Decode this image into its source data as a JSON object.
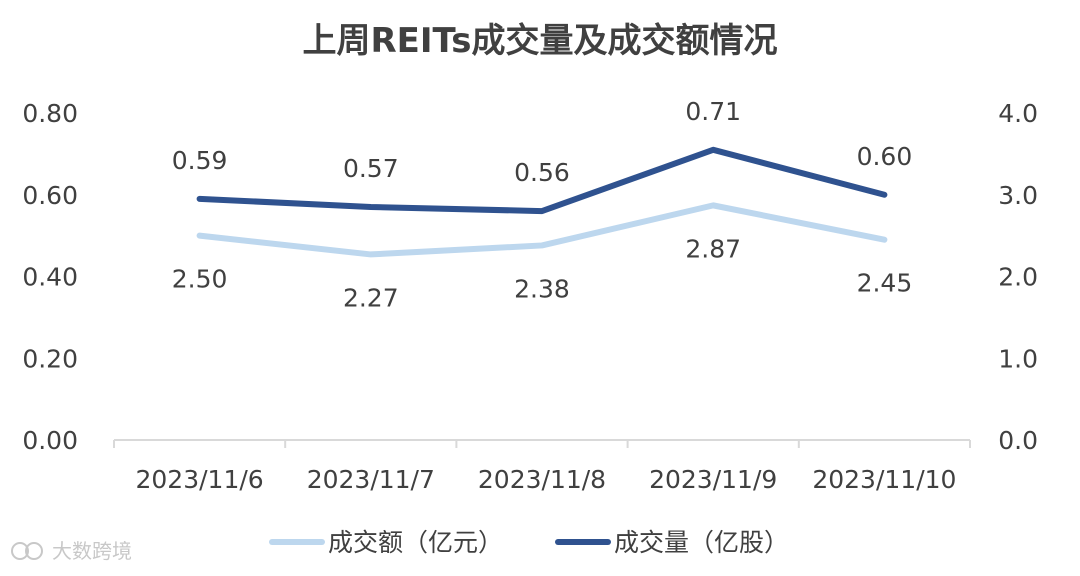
{
  "chart_data": {
    "type": "line",
    "title": "上周REITs成交量及成交额情况",
    "categories": [
      "2023/11/6",
      "2023/11/7",
      "2023/11/8",
      "2023/11/9",
      "2023/11/10"
    ],
    "series": [
      {
        "name": "成交额（亿元）",
        "axis": "right",
        "values": [
          2.5,
          2.27,
          2.38,
          2.87,
          2.45
        ],
        "labels": [
          "2.50",
          "2.27",
          "2.38",
          "2.87",
          "2.45"
        ],
        "color": "#bdd7ee"
      },
      {
        "name": "成交量（亿股）",
        "axis": "left",
        "values": [
          0.59,
          0.57,
          0.56,
          0.71,
          0.6
        ],
        "labels": [
          "0.59",
          "0.57",
          "0.56",
          "0.71",
          "0.60"
        ],
        "color": "#2f528f"
      }
    ],
    "y_left": {
      "min": 0,
      "max": 0.8,
      "ticks": [
        "0.00",
        "0.20",
        "0.40",
        "0.60",
        "0.80"
      ]
    },
    "y_right": {
      "min": 0,
      "max": 4.0,
      "ticks": [
        "0.0",
        "1.0",
        "2.0",
        "3.0",
        "4.0"
      ]
    },
    "grid": false,
    "legend_position": "bottom"
  },
  "watermark": "大数跨境"
}
